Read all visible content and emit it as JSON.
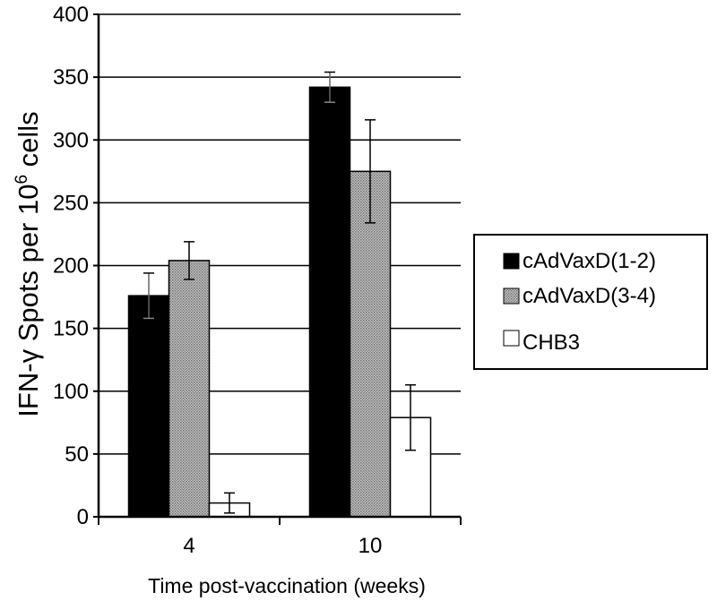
{
  "chart_data": {
    "type": "bar",
    "xlabel": "Time post-vaccination (weeks)",
    "ylabel_parts": [
      "IFN-",
      "γ",
      " Spots per 10",
      "6",
      " cells"
    ],
    "categories": [
      "4",
      "10"
    ],
    "ylim": [
      0,
      400
    ],
    "yticks": [
      "0",
      "50",
      "100",
      "150",
      "200",
      "250",
      "300",
      "350",
      "400"
    ],
    "grid": true,
    "legend_position": "right",
    "series": [
      {
        "name": "cAdVaxD(1-2)",
        "values": [
          176,
          342
        ],
        "errors": [
          18,
          12
        ],
        "fill": "#000000"
      },
      {
        "name": "cAdVaxD(3-4)",
        "values": [
          204,
          275
        ],
        "errors": [
          15,
          41
        ],
        "fill": "#a8a8a8"
      },
      {
        "name": "CHB3",
        "values": [
          11,
          79
        ],
        "errors": [
          8,
          26
        ],
        "fill": "#ffffff"
      }
    ]
  }
}
